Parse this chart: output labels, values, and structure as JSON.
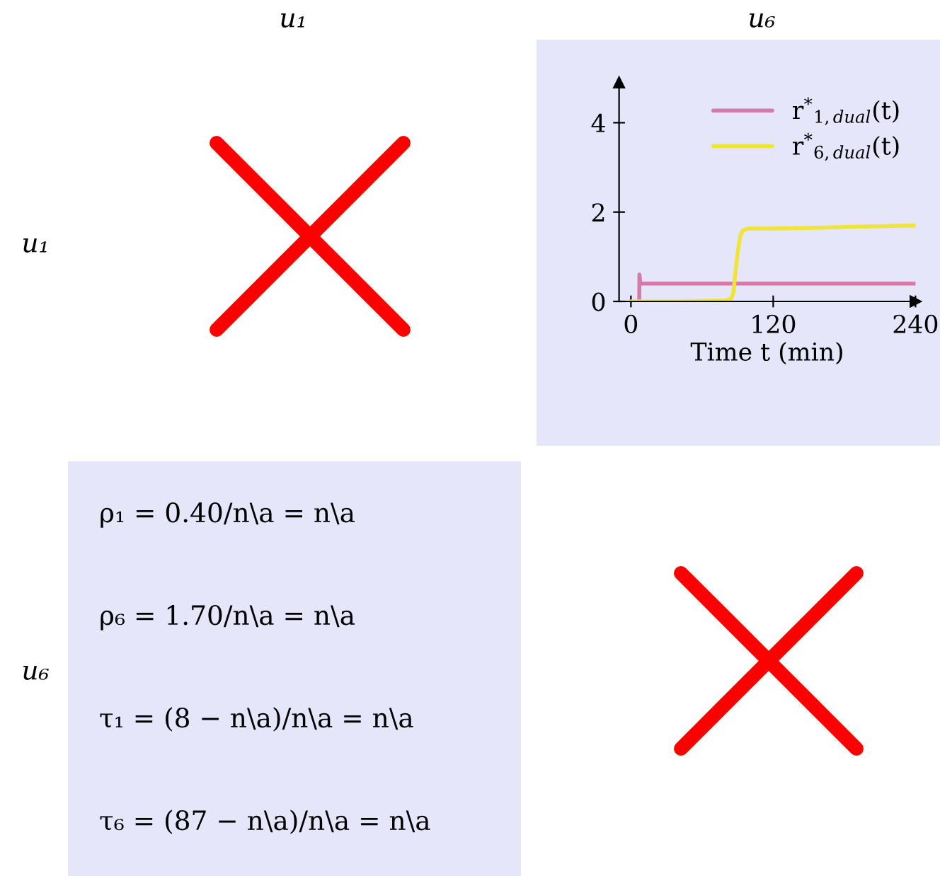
{
  "chart_data": [
    {
      "type": "other",
      "title": "u₁",
      "ylabel": "u₁"
    },
    {
      "type": "line",
      "title": "u₆",
      "xlabel": "Time t (min)",
      "xlim": [
        -10,
        240
      ],
      "xticks": [
        0,
        120,
        240
      ],
      "ylim": [
        0,
        4.9
      ],
      "yticks": [
        0,
        2,
        4
      ],
      "legend": "top right",
      "series": [
        {
          "name": "r$^{*}$$_{1,dual}$(t)",
          "color": "#d47ba8",
          "x": [
            7,
            7.2,
            8,
            240
          ],
          "values": [
            0,
            0.6,
            0.4,
            0.4
          ]
        },
        {
          "name": "r$^{*}$$_{6,dual}$(t)",
          "color": "#f0e43a",
          "x": [
            0,
            40,
            80,
            84.5,
            86.5,
            88.4,
            90.4,
            92.4,
            94.4,
            98.4,
            120,
            160,
            200,
            240
          ],
          "values": [
            0,
            0,
            0.02,
            0.06,
            0.2,
            0.73,
            1.16,
            1.48,
            1.59,
            1.63,
            1.63,
            1.65,
            1.68,
            1.7
          ]
        }
      ]
    },
    {
      "type": "other",
      "ylabel": "u₆",
      "annotations": [
        "ρ₁ = 0.40/n\\a = n\\a",
        "ρ₆ = 1.70/n\\a = n\\a",
        "τ₁ = (8 − n\\a)/n\\a = n\\a",
        "τ₆ = (87 − n\\a)/n\\a = n\\a"
      ]
    }
  ]
}
